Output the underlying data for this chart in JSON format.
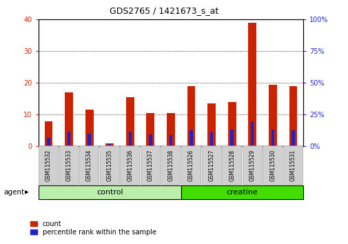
{
  "title": "GDS2765 / 1421673_s_at",
  "samples": [
    "GSM115532",
    "GSM115533",
    "GSM115534",
    "GSM115535",
    "GSM115536",
    "GSM115537",
    "GSM115538",
    "GSM115526",
    "GSM115527",
    "GSM115528",
    "GSM115529",
    "GSM115530",
    "GSM115531"
  ],
  "counts": [
    8.0,
    17.0,
    11.5,
    1.0,
    15.5,
    10.5,
    10.5,
    19.0,
    13.5,
    14.0,
    39.0,
    19.5,
    19.0
  ],
  "percentile": [
    7.0,
    11.5,
    10.0,
    2.0,
    11.5,
    9.5,
    9.0,
    12.5,
    11.0,
    13.5,
    20.0,
    13.0,
    12.5
  ],
  "groups": [
    "control",
    "control",
    "control",
    "control",
    "control",
    "control",
    "control",
    "creatine",
    "creatine",
    "creatine",
    "creatine",
    "creatine",
    "creatine"
  ],
  "group_colors": {
    "control": "#BBEEAA",
    "creatine": "#44DD00"
  },
  "bar_color_red": "#CC2200",
  "bar_color_blue": "#2222CC",
  "ylim_left": [
    0,
    40
  ],
  "ylim_right": [
    0,
    100
  ],
  "yticks_left": [
    0,
    10,
    20,
    30,
    40
  ],
  "yticks_right": [
    0,
    25,
    50,
    75,
    100
  ],
  "legend_count_label": "count",
  "legend_pct_label": "percentile rank within the sample",
  "agent_label": "agent",
  "figsize": [
    5.06,
    3.54
  ],
  "dpi": 100
}
